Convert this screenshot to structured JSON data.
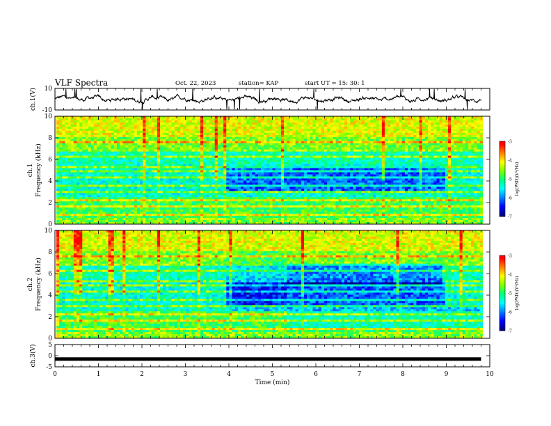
{
  "header": {
    "title": "VLF Spectra",
    "date": "Oct. 22, 2023",
    "station": "station= KAP",
    "start_time": "start  UT =   15: 30: 1"
  },
  "chart_data": [
    {
      "type": "line",
      "panel": "ch1-waveform",
      "ylabel": "ch.1(V)",
      "ylim": [
        -10,
        10
      ],
      "yticks": [
        10,
        -10
      ],
      "xlim": [
        0,
        10
      ]
    },
    {
      "type": "heatmap",
      "panel": "ch1-spectrogram",
      "ylabel": "ch.1\nFrequency  (kHz)",
      "ylim": [
        0,
        10
      ],
      "yticks": [
        0,
        2,
        4,
        6,
        8,
        10
      ],
      "xlim": [
        0,
        10
      ],
      "colorbar": {
        "label": "log(PSD)(V²/Hz)",
        "range": [
          -7,
          -3
        ],
        "ticks": [
          -3,
          -4,
          -5,
          -6,
          -7
        ]
      }
    },
    {
      "type": "heatmap",
      "panel": "ch2-spectrogram",
      "ylabel": "ch.2\nFrequency  (kHz)",
      "ylim": [
        0,
        10
      ],
      "yticks": [
        0,
        2,
        4,
        6,
        8,
        10
      ],
      "xlim": [
        0,
        10
      ],
      "colorbar": {
        "label": "log(PSD)(V²/Hz)",
        "range": [
          -7,
          -3
        ],
        "ticks": [
          -3,
          -4,
          -5,
          -6,
          -7
        ]
      }
    },
    {
      "type": "line",
      "panel": "ch3-waveform",
      "ylabel": "ch.3(V)",
      "ylim": [
        -5,
        5
      ],
      "yticks": [
        5,
        0,
        -5
      ],
      "xlim": [
        0,
        10
      ],
      "xlabel": "Time  (min)",
      "xticks": [
        0,
        1,
        2,
        3,
        4,
        5,
        6,
        7,
        8,
        9,
        10
      ],
      "data_end_min": 9.8,
      "level_v": -1.5
    }
  ],
  "labels": {
    "ch1_ylabel": "ch.1(V)",
    "ch1_freq": "ch.1",
    "ch2_freq": "ch.2",
    "freq_label": "Frequency  (kHz)",
    "ch3_ylabel": "ch.3(V)",
    "colorbar_label": "log(PSD)(V²/Hz)",
    "xlabel": "Time  (min)"
  },
  "colormap": [
    "#000080",
    "#0000ff",
    "#0080ff",
    "#00ffff",
    "#00ff80",
    "#80ff00",
    "#ffff00",
    "#ff8000",
    "#ff0000",
    "#ffffff"
  ]
}
